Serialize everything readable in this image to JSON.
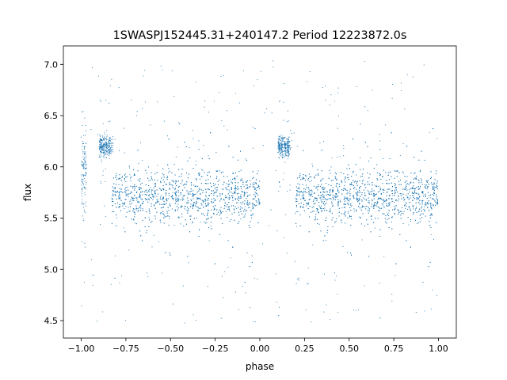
{
  "chart_data": {
    "type": "scatter",
    "title": "1SWASPJ152445.31+240147.2 Period 12223872.0s",
    "xlabel": "phase",
    "ylabel": "flux",
    "xlim": [
      -1.1,
      1.1
    ],
    "ylim": [
      4.33,
      7.18
    ],
    "x_ticks": [
      "−1.00",
      "−0.75",
      "−0.50",
      "−0.25",
      "0.00",
      "0.25",
      "0.50",
      "0.75",
      "1.00"
    ],
    "x_tick_values": [
      -1.0,
      -0.75,
      -0.5,
      -0.25,
      0.0,
      0.25,
      0.5,
      0.75,
      1.0
    ],
    "y_ticks": [
      "4.5",
      "5.0",
      "5.5",
      "6.0",
      "6.5",
      "7.0"
    ],
    "y_tick_values": [
      4.5,
      5.0,
      5.5,
      6.0,
      6.5,
      7.0
    ],
    "grid": false,
    "legend": "none",
    "marker_color": "#1f77b4",
    "series": [
      {
        "phase_range": [
          -1.0,
          1.0
        ],
        "typical_flux": 5.75,
        "flux_range": [
          4.45,
          7.05
        ],
        "description_of_clusters": [
          {
            "phase": [
              -1.0,
              -0.97
            ],
            "flux_center": 5.95,
            "flux_spread": [
              5.5,
              6.8
            ]
          },
          {
            "phase": [
              -0.9,
              -0.83
            ],
            "flux_center": 6.2,
            "flux_spread": [
              6.0,
              6.35
            ]
          },
          {
            "phase": [
              -0.83,
              0.0
            ],
            "flux_center": 5.72,
            "flux_spread": [
              5.3,
              6.2
            ]
          },
          {
            "phase": [
              0.1,
              0.17
            ],
            "flux_center": 6.2,
            "flux_spread": [
              6.0,
              6.35
            ]
          },
          {
            "phase": [
              0.2,
              1.0
            ],
            "flux_center": 5.72,
            "flux_spread": [
              5.3,
              6.2
            ]
          }
        ]
      }
    ]
  }
}
